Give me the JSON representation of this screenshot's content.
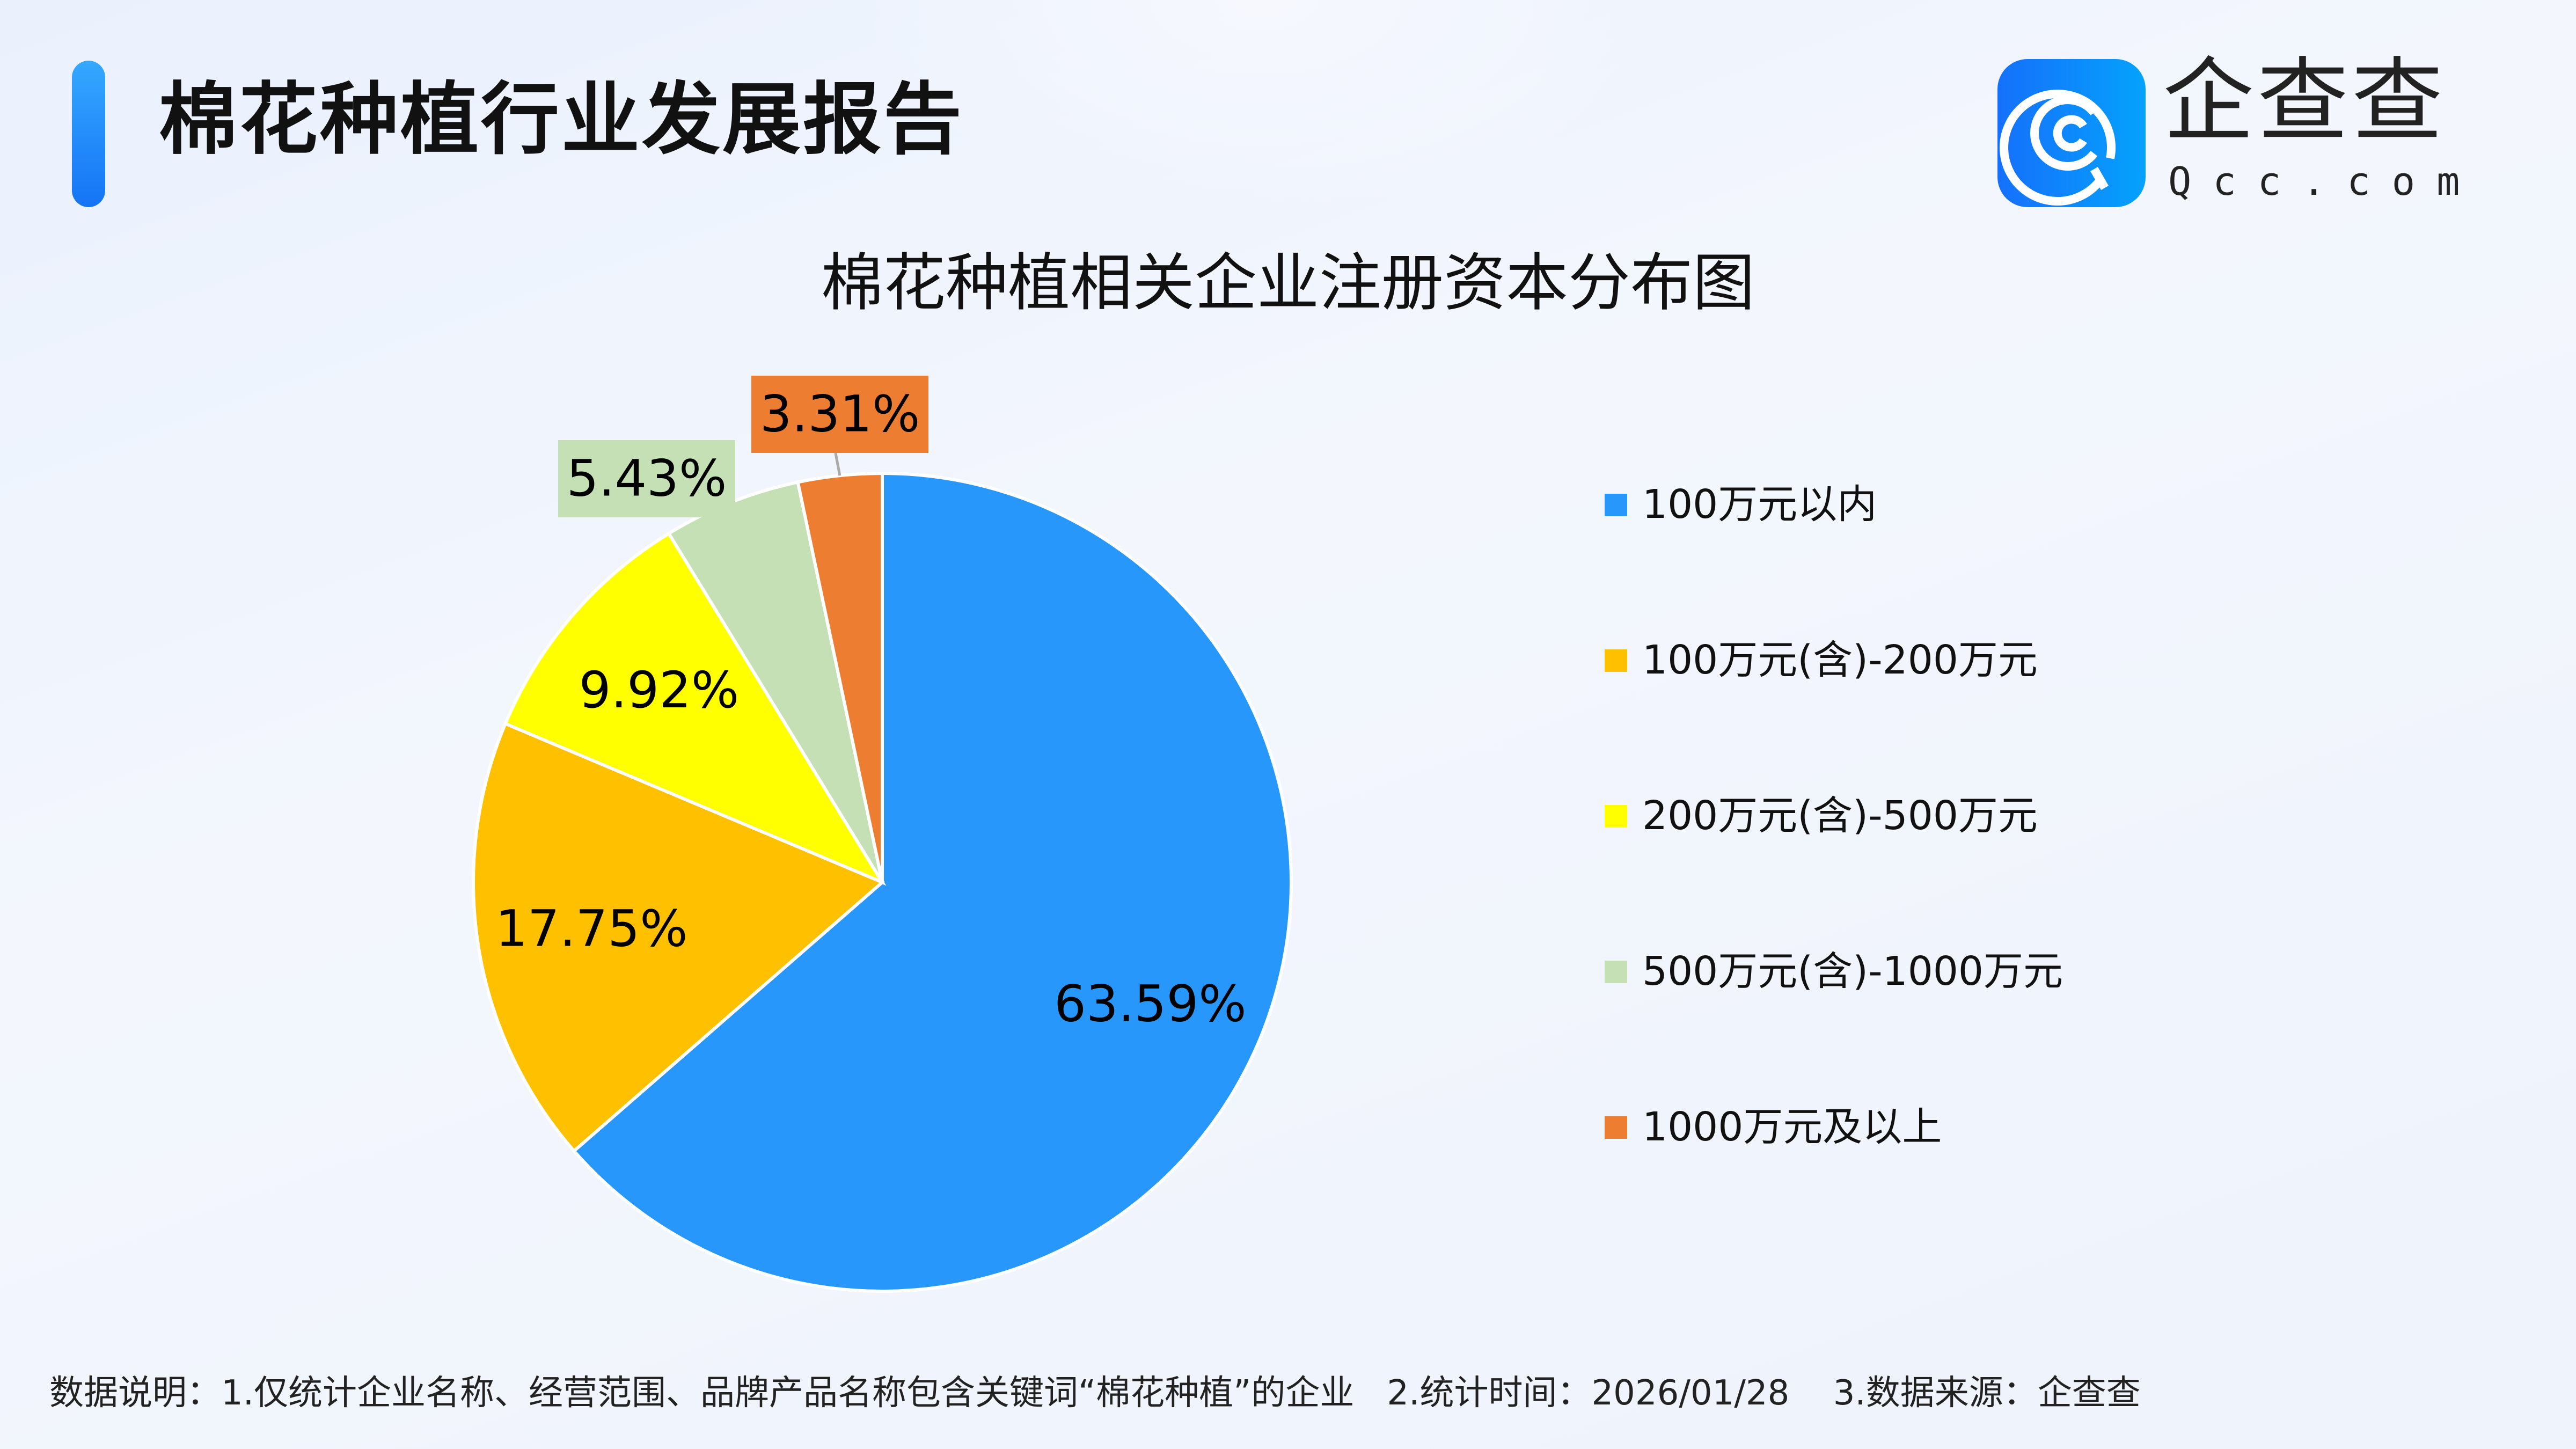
{
  "header": {
    "title": "棉花种植行业发展报告",
    "logo_cn": "企查查",
    "logo_en": "Qcc.com"
  },
  "chart_data": {
    "type": "pie",
    "title": "棉花种植相关企业注册资本分布图",
    "start_angle": "top",
    "direction": "clockwise",
    "categories": [
      "100万元以内",
      "100万元(含)-200万元",
      "200万元(含)-500万元",
      "500万元(含)-1000万元",
      "1000万元及以上"
    ],
    "values": [
      63.59,
      17.75,
      9.92,
      5.43,
      3.31
    ],
    "labels": [
      "63.59%",
      "17.75%",
      "9.92%",
      "5.43%",
      "3.31%"
    ],
    "colors": [
      "#2797fb",
      "#ffc000",
      "#ffff00",
      "#c5e0b4",
      "#ed7d31"
    ],
    "legend_position": "right"
  },
  "footer": {
    "note": "数据说明：1.仅统计企业名称、经营范围、品牌产品名称包含关键词“棉花种植”的企业   2.统计时间：2026/01/28    3.数据来源：企查查"
  }
}
